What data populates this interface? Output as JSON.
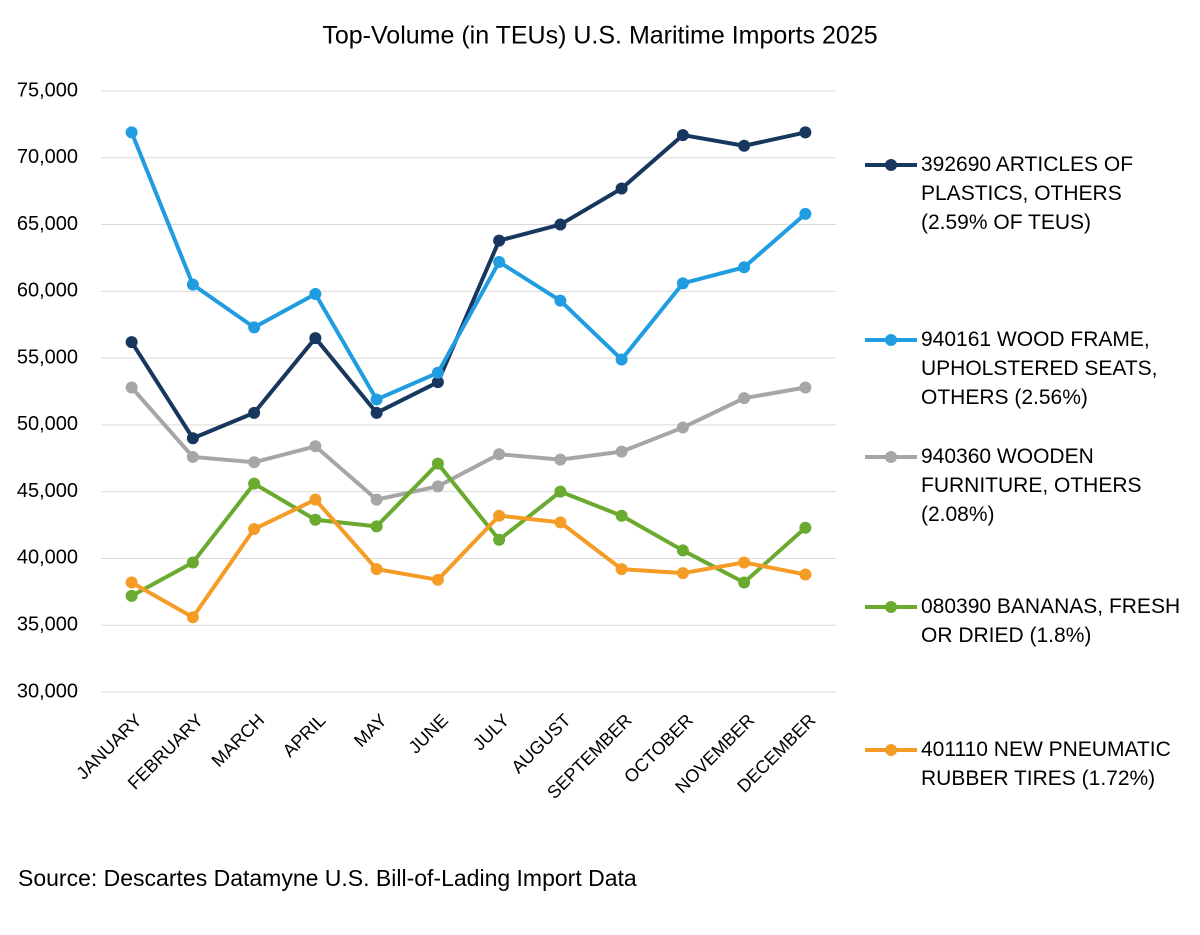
{
  "chart_data": {
    "type": "line",
    "title": "Top-Volume (in TEUs) U.S. Maritime Imports 2025",
    "source": "Source: Descartes Datamyne U.S. Bill-of-Lading Import Data",
    "categories": [
      "JANUARY",
      "FEBRUARY",
      "MARCH",
      "APRIL",
      "MAY",
      "JUNE",
      "JULY",
      "AUGUST",
      "SEPTEMBER",
      "OCTOBER",
      "NOVEMBER",
      "DECEMBER"
    ],
    "series": [
      {
        "name": "392690 ARTICLES OF PLASTICS, OTHERS (2.59% OF TEUS)",
        "color": "#17375e",
        "values": [
          56200,
          49000,
          50900,
          56500,
          50900,
          53200,
          63800,
          65000,
          67700,
          71700,
          70900,
          71900
        ]
      },
      {
        "name": "940161 WOOD FRAME, UPHOLSTERED SEATS, OTHERS (2.56%)",
        "color": "#1f9de0",
        "values": [
          71900,
          60500,
          57300,
          59800,
          51900,
          53900,
          62200,
          59300,
          54900,
          60600,
          61800,
          65800
        ]
      },
      {
        "name": "940360 WOODEN FURNITURE, OTHERS (2.08%)",
        "color": "#a6a6a6",
        "values": [
          52800,
          47600,
          47200,
          48400,
          44400,
          45400,
          47800,
          47400,
          48000,
          49800,
          52000,
          52800
        ]
      },
      {
        "name": "080390 BANANAS, FRESH OR DRIED (1.8%)",
        "color": "#6aaa2e",
        "values": [
          37200,
          39700,
          45600,
          42900,
          42400,
          47100,
          41400,
          45000,
          43200,
          40600,
          38200,
          42300
        ]
      },
      {
        "name": "401110 NEW PNEUMATIC RUBBER TIRES (1.72%)",
        "color": "#f59c27",
        "values": [
          38200,
          35600,
          42200,
          44400,
          39200,
          38400,
          43200,
          42700,
          39200,
          38900,
          39700,
          38800
        ]
      }
    ],
    "ylim": [
      30000,
      75000
    ],
    "yticks": [
      {
        "value": 30000,
        "label": "30,000"
      },
      {
        "value": 35000,
        "label": "35,000"
      },
      {
        "value": 40000,
        "label": "40,000"
      },
      {
        "value": 45000,
        "label": "45,000"
      },
      {
        "value": 50000,
        "label": "50,000"
      },
      {
        "value": 55000,
        "label": "55,000"
      },
      {
        "value": 60000,
        "label": "60,000"
      },
      {
        "value": 65000,
        "label": "65,000"
      },
      {
        "value": 70000,
        "label": "70,000"
      },
      {
        "value": 75000,
        "label": "75,000"
      }
    ],
    "grid": true
  }
}
